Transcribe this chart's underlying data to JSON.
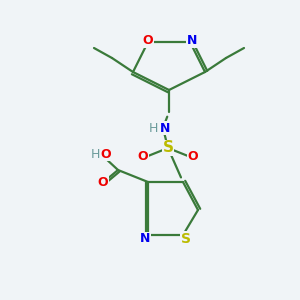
{
  "bg_color": "#f0f4f7",
  "atom_colors": {
    "C": "#333333",
    "H": "#6b9b9b",
    "N": "#0000ee",
    "O": "#ee0000",
    "S": "#bbbb00",
    "bond": "#3a7a3a"
  },
  "figsize": [
    3.0,
    3.0
  ],
  "dpi": 100
}
